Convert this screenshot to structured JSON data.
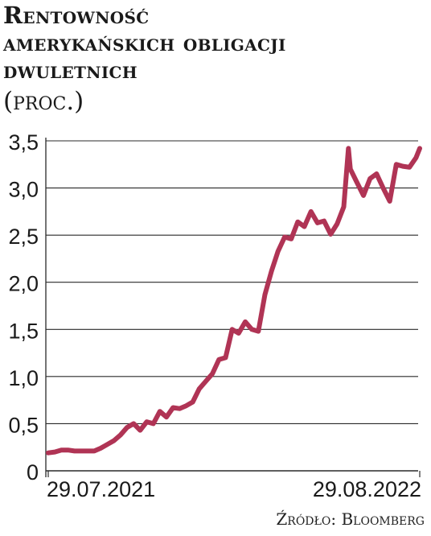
{
  "title_lines": [
    "Rentowność",
    "amerykańskich obligacji",
    "dwuletnich"
  ],
  "unit": "(proc.)",
  "source": "Źródło: Bloomberg",
  "chart_data": {
    "type": "line",
    "title": "Rentowność amerykańskich obligacji dwuletnich",
    "ylabel": "(proc.)",
    "xlabel": "",
    "ylim": [
      0,
      3.5
    ],
    "y_ticks": [
      "0",
      "0,5",
      "1,0",
      "1,5",
      "2,0",
      "2,5",
      "3,0",
      "3,5"
    ],
    "x_ticks": [
      "29.07.2021",
      "29.08.2022"
    ],
    "grid": true,
    "line_color": "#b03455",
    "series": [
      {
        "x": [
          "2021-07-29",
          "2021-08-05",
          "2021-08-12",
          "2021-08-19",
          "2021-08-26",
          "2021-09-02",
          "2021-09-09",
          "2021-09-16",
          "2021-09-23",
          "2021-09-30",
          "2021-10-07",
          "2021-10-14",
          "2021-10-21",
          "2021-10-28",
          "2021-11-04",
          "2021-11-11",
          "2021-11-18",
          "2021-11-25",
          "2021-12-02",
          "2021-12-09",
          "2021-12-16",
          "2021-12-23",
          "2021-12-30",
          "2022-01-06",
          "2022-01-13",
          "2022-01-20",
          "2022-01-27",
          "2022-02-03",
          "2022-02-10",
          "2022-02-17",
          "2022-02-24",
          "2022-03-03",
          "2022-03-10",
          "2022-03-17",
          "2022-03-24",
          "2022-03-31",
          "2022-04-07",
          "2022-04-14",
          "2022-04-21",
          "2022-04-28",
          "2022-05-05",
          "2022-05-12",
          "2022-05-19",
          "2022-05-26",
          "2022-06-02",
          "2022-06-09",
          "2022-06-14",
          "2022-06-16",
          "2022-06-23",
          "2022-06-30",
          "2022-07-07",
          "2022-07-14",
          "2022-07-21",
          "2022-07-28",
          "2022-08-04",
          "2022-08-11",
          "2022-08-18",
          "2022-08-25",
          "2022-08-29"
        ],
        "values": [
          0.19,
          0.2,
          0.22,
          0.22,
          0.21,
          0.21,
          0.21,
          0.21,
          0.24,
          0.28,
          0.32,
          0.38,
          0.46,
          0.5,
          0.43,
          0.52,
          0.5,
          0.63,
          0.57,
          0.67,
          0.66,
          0.69,
          0.73,
          0.87,
          0.95,
          1.03,
          1.18,
          1.2,
          1.5,
          1.46,
          1.58,
          1.5,
          1.48,
          1.87,
          2.12,
          2.33,
          2.48,
          2.46,
          2.64,
          2.59,
          2.75,
          2.63,
          2.65,
          2.51,
          2.62,
          2.8,
          3.42,
          3.2,
          3.06,
          2.92,
          3.1,
          3.15,
          3.0,
          2.86,
          3.25,
          3.23,
          3.22,
          3.32,
          3.42
        ]
      }
    ]
  }
}
